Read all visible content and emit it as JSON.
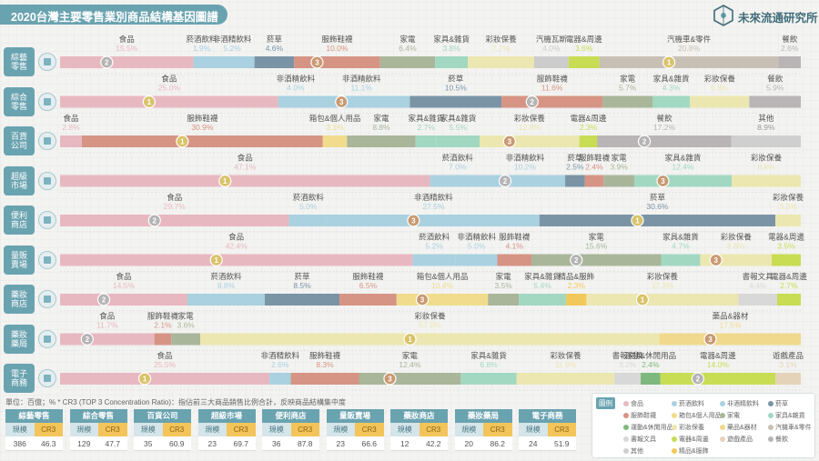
{
  "title": "2020台灣主要零售業別商品結構基因圖譜",
  "brand": "未來流通研究所",
  "footnote": "單位：百億；%   * CR3 (TOP 3 Concentration Ratio)：指佔前三大商品銷售比例合計，反映商品結構集中度",
  "summary_header": {
    "left": "規模",
    "right": "CR3"
  },
  "legend_title": "圖例",
  "colors": {
    "食品": "#e8b8c0",
    "菸酒飲料": "#a9d1e0",
    "非酒精飲料": "#a9d1e0",
    "菸草": "#7a94a6",
    "服飾鞋襪": "#d69484",
    "箱包&個人用品": "#f0dc8c",
    "家電": "#a9b69a",
    "家具&雜貨": "#a2d8c2",
    "運動&休閒用品": "#7eb87e",
    "彩妝保養": "#ece7b0",
    "藥品&器材": "#f0d98c",
    "汽機車&零件": "#c8c0b4",
    "書報文具": "#d8d8d8",
    "電器&周邊": "#c8dc54",
    "遊戲產品": "#e4d3b8",
    "餐飲": "#b9b4b6",
    "其他": "#cfcfcf",
    "精品&服飾": "#f2c85a",
    "accent": "#6aa3b0"
  },
  "legend": [
    "食品",
    "菸酒飲料",
    "非酒精飲料",
    "菸草",
    "服飾鞋襪",
    "箱包&個人用品",
    "家電",
    "家具&雜貨",
    "運動&休閒用品",
    "彩妝保養",
    "藥品&器材",
    "汽機車&零件",
    "書報文具",
    "電器&周邊",
    "遊戲產品",
    "餐飲",
    "其他",
    "精品&服飾"
  ],
  "chart_data": {
    "type": "bar",
    "rows": [
      {
        "label": [
          "綜藝",
          "零售"
        ],
        "segments": [
          {
            "name": "食品",
            "value": 15.5,
            "rank": 2
          },
          {
            "name": "菸酒飲料",
            "value": 1.9
          },
          {
            "name": "非酒精飲料",
            "value": 5.2
          },
          {
            "name": "菸草",
            "value": 4.6
          },
          {
            "name": "服飾鞋襪",
            "value": 10.0,
            "rank": 3
          },
          {
            "name": "家電",
            "value": 6.4
          },
          {
            "name": "家具&雜貨",
            "value": 3.8
          },
          {
            "name": "彩妝保養",
            "value": 7.7
          },
          {
            "name": "汽機瓦斯",
            "value": 4.0
          },
          {
            "name": "電器&周邊",
            "value": 3.6
          },
          {
            "name": "汽機車&零件",
            "value": 20.8,
            "rank": 1
          },
          {
            "name": "餐飲",
            "value": 2.6
          }
        ]
      },
      {
        "label": [
          "綜合",
          "零售"
        ],
        "segments": [
          {
            "name": "食品",
            "value": 25.0,
            "rank": 1
          },
          {
            "name": "非酒精飲料",
            "value": 4.0
          },
          {
            "name": "非酒精飲料",
            "value": 11.1,
            "rank": 3
          },
          {
            "name": "菸草",
            "value": 10.5
          },
          {
            "name": "服飾鞋襪",
            "value": 11.6,
            "rank": 2
          },
          {
            "name": "家電",
            "value": 5.7
          },
          {
            "name": "家具&雜貨",
            "value": 4.3
          },
          {
            "name": "彩妝保養",
            "value": 6.8
          },
          {
            "name": "餐飲",
            "value": 5.9
          }
        ]
      },
      {
        "label": [
          "百貨",
          "公司"
        ],
        "segments": [
          {
            "name": "食品",
            "value": 2.8
          },
          {
            "name": "服飾鞋襪",
            "value": 30.9,
            "rank": 1
          },
          {
            "name": "箱包&個人用品",
            "value": 3.1
          },
          {
            "name": "家電",
            "value": 8.8
          },
          {
            "name": "家具&雜貨",
            "value": 2.7
          },
          {
            "name": "家具&雜貨",
            "value": 5.5
          },
          {
            "name": "彩妝保養",
            "value": 12.8,
            "rank": 3
          },
          {
            "name": "電器&周邊",
            "value": 2.3
          },
          {
            "name": "餐飲",
            "value": 17.2,
            "rank": 2
          },
          {
            "name": "其他",
            "value": 8.9
          }
        ]
      },
      {
        "label": [
          "超級",
          "市場"
        ],
        "segments": [
          {
            "name": "食品",
            "value": 47.1,
            "rank": 1
          },
          {
            "name": "菸酒飲料",
            "value": 7.0
          },
          {
            "name": "非酒精飲料",
            "value": 10.2,
            "rank": 2
          },
          {
            "name": "菸草",
            "value": 2.5
          },
          {
            "name": "服飾鞋襪",
            "value": 2.4
          },
          {
            "name": "家電",
            "value": 3.9
          },
          {
            "name": "家具&雜貨",
            "value": 12.4,
            "rank": 3
          },
          {
            "name": "彩妝保養",
            "value": 8.8
          }
        ]
      },
      {
        "label": [
          "便利",
          "商店"
        ],
        "segments": [
          {
            "name": "食品",
            "value": 29.7,
            "rank": 2
          },
          {
            "name": "菸酒飲料",
            "value": 5.0
          },
          {
            "name": "非酒精飲料",
            "value": 27.5,
            "rank": 3
          },
          {
            "name": "菸草",
            "value": 30.6,
            "rank": 1
          },
          {
            "name": "彩妝保養",
            "value": 3.3
          }
        ]
      },
      {
        "label": [
          "量販",
          "賣場"
        ],
        "segments": [
          {
            "name": "食品",
            "value": 42.4,
            "rank": 1
          },
          {
            "name": "菸酒飲料",
            "value": 5.2
          },
          {
            "name": "非酒精飲料",
            "value": 5.0
          },
          {
            "name": "服飾鞋襪",
            "value": 4.1
          },
          {
            "name": "家電",
            "value": 15.6,
            "rank": 2
          },
          {
            "name": "家具&雜貨",
            "value": 4.7
          },
          {
            "name": "彩妝保養",
            "value": 8.6,
            "rank": 3
          },
          {
            "name": "電器&周邊",
            "value": 3.5
          }
        ]
      },
      {
        "label": [
          "藥妝",
          "商店"
        ],
        "segments": [
          {
            "name": "食品",
            "value": 14.5,
            "rank": 2
          },
          {
            "name": "菸酒飲料",
            "value": 8.8
          },
          {
            "name": "菸草",
            "value": 8.5
          },
          {
            "name": "服飾鞋襪",
            "value": 6.5
          },
          {
            "name": "箱包&個人用品",
            "value": 10.4,
            "rank": 3
          },
          {
            "name": "家電",
            "value": 3.5
          },
          {
            "name": "家具&雜貨",
            "value": 5.4
          },
          {
            "name": "精品&服飾",
            "value": 2.3
          },
          {
            "name": "彩妝保養",
            "value": 17.3,
            "rank": 1
          },
          {
            "name": "書報文具",
            "value": 4.4
          },
          {
            "name": "電器&周邊",
            "value": 2.7
          }
        ]
      },
      {
        "label": [
          "藥妝",
          "藥局"
        ],
        "segments": [
          {
            "name": "食品",
            "value": 11.7,
            "rank": 2
          },
          {
            "name": "服飾鞋襪",
            "value": 2.1
          },
          {
            "name": "家電",
            "value": 3.6
          },
          {
            "name": "彩妝保養",
            "value": 57.0,
            "rank": 1
          },
          {
            "name": "藥品&器材",
            "value": 17.5,
            "rank": 3
          }
        ]
      },
      {
        "label": [
          "電子",
          "商務"
        ],
        "segments": [
          {
            "name": "食品",
            "value": 25.5,
            "rank": 1
          },
          {
            "name": "非酒精飲料",
            "value": 2.6
          },
          {
            "name": "服飾鞋襪",
            "value": 8.3
          },
          {
            "name": "家電",
            "value": 12.4,
            "rank": 3
          },
          {
            "name": "家具&雜貨",
            "value": 6.8
          },
          {
            "name": "彩妝保養",
            "value": 11.9
          },
          {
            "name": "書報文具",
            "value": 3.2
          },
          {
            "name": "運動&休閒用品",
            "value": 2.4
          },
          {
            "name": "電器&周邊",
            "value": 14.0,
            "rank": 2
          },
          {
            "name": "遊戲產品",
            "value": 3.1
          }
        ]
      }
    ],
    "xlim": [
      0,
      100
    ]
  },
  "summary": [
    {
      "name": "綜藝零售",
      "scale": "386",
      "cr3": "46.3"
    },
    {
      "name": "綜合零售",
      "scale": "129",
      "cr3": "47.7"
    },
    {
      "name": "百貨公司",
      "scale": "35",
      "cr3": "60.9"
    },
    {
      "name": "超級市場",
      "scale": "23",
      "cr3": "69.7"
    },
    {
      "name": "便利商店",
      "scale": "36",
      "cr3": "87.8"
    },
    {
      "name": "量販賣場",
      "scale": "23",
      "cr3": "66.6"
    },
    {
      "name": "藥妝商店",
      "scale": "12",
      "cr3": "42.2"
    },
    {
      "name": "藥妝藥局",
      "scale": "20",
      "cr3": "86.2"
    },
    {
      "name": "電子商務",
      "scale": "24",
      "cr3": "51.9"
    }
  ]
}
